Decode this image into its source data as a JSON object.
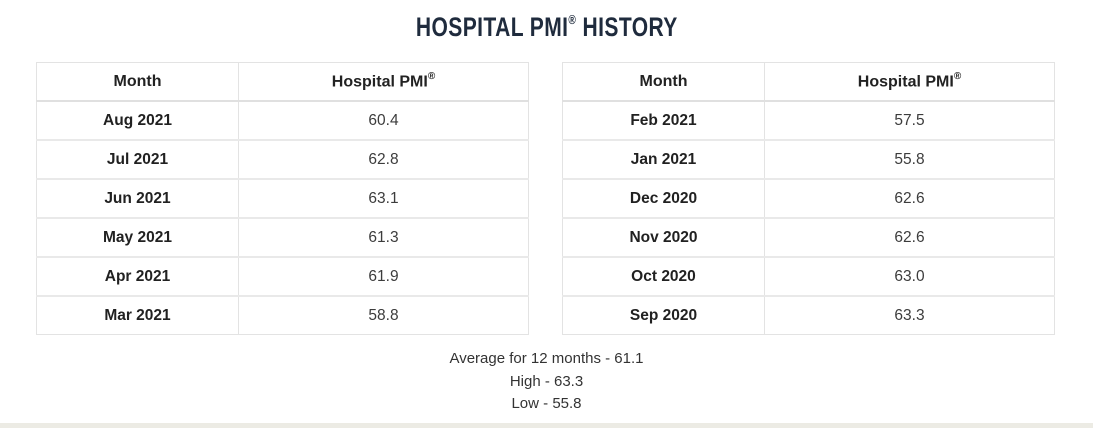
{
  "title": {
    "text": "HOSPITAL PMI",
    "reg": "®",
    "suffix": " HISTORY"
  },
  "tables": {
    "left": {
      "headers": {
        "month": "Month",
        "pmi": "Hospital PMI",
        "reg": "®"
      },
      "rows": [
        {
          "month": "Aug 2021",
          "pmi": "60.4"
        },
        {
          "month": "Jul 2021",
          "pmi": "62.8"
        },
        {
          "month": "Jun 2021",
          "pmi": "63.1"
        },
        {
          "month": "May 2021",
          "pmi": "61.3"
        },
        {
          "month": "Apr 2021",
          "pmi": "61.9"
        },
        {
          "month": "Mar 2021",
          "pmi": "58.8"
        }
      ]
    },
    "right": {
      "headers": {
        "month": "Month",
        "pmi": "Hospital PMI",
        "reg": "®"
      },
      "rows": [
        {
          "month": "Feb 2021",
          "pmi": "57.5"
        },
        {
          "month": "Jan 2021",
          "pmi": "55.8"
        },
        {
          "month": "Dec 2020",
          "pmi": "62.6"
        },
        {
          "month": "Nov 2020",
          "pmi": "62.6"
        },
        {
          "month": "Oct 2020",
          "pmi": "63.0"
        },
        {
          "month": "Sep 2020",
          "pmi": "63.3"
        }
      ]
    }
  },
  "summary": {
    "average": "Average for 12 months - 61.1",
    "high": "High - 63.3",
    "low": "Low - 55.8"
  },
  "colors": {
    "title": "#1f2b3d",
    "body_text": "#333333",
    "month_text": "#212121",
    "value_text": "#3c3c3c",
    "table_border": "#e3e3e3",
    "row_separator": "#e9e9e9",
    "footer_strip": "#ecebe4"
  },
  "chart_data": {
    "type": "table",
    "title": "Hospital PMI® History",
    "columns": [
      "Month",
      "Hospital PMI®"
    ],
    "rows": [
      [
        "Aug 2021",
        60.4
      ],
      [
        "Jul 2021",
        62.8
      ],
      [
        "Jun 2021",
        63.1
      ],
      [
        "May 2021",
        61.3
      ],
      [
        "Apr 2021",
        61.9
      ],
      [
        "Mar 2021",
        58.8
      ],
      [
        "Feb 2021",
        57.5
      ],
      [
        "Jan 2021",
        55.8
      ],
      [
        "Dec 2020",
        62.6
      ],
      [
        "Nov 2020",
        62.6
      ],
      [
        "Oct 2020",
        63.0
      ],
      [
        "Sep 2020",
        63.3
      ]
    ],
    "summary": {
      "average_for_12_months": 61.1,
      "high": 63.3,
      "low": 55.8
    },
    "layout": "two side-by-side tables of 6 rows each, summary lines centered below"
  }
}
